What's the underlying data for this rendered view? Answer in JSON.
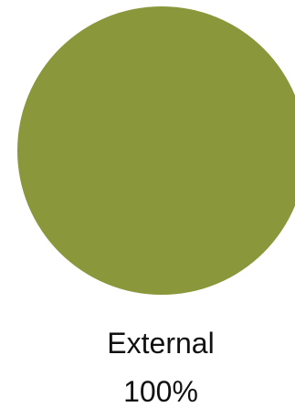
{
  "chart_data": {
    "type": "pie",
    "title": "",
    "slices": [
      {
        "label": "External",
        "value": 100,
        "value_label": "100%",
        "color": "#8a973a"
      }
    ],
    "legend": "none"
  }
}
